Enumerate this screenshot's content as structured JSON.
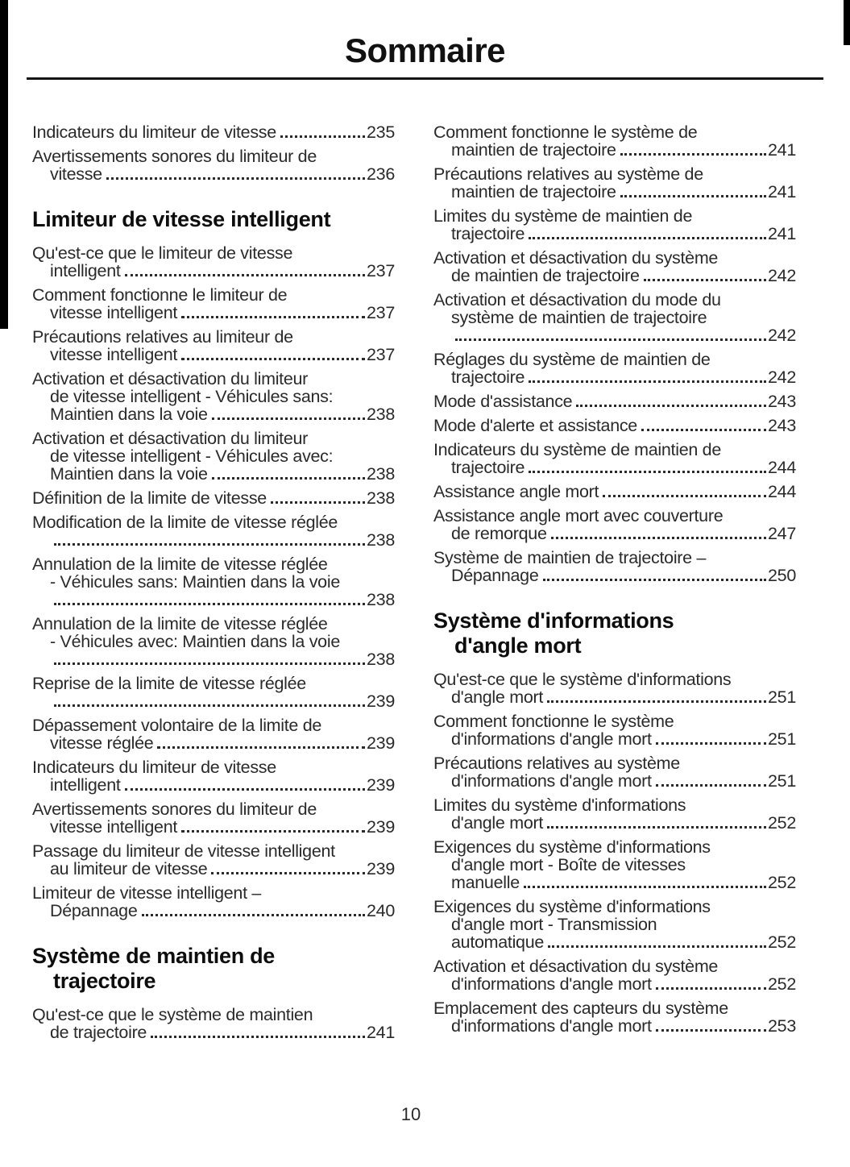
{
  "page": {
    "title": "Sommaire",
    "page_number": "10",
    "text_color": "#2a2a2a",
    "heading_color": "#0d0d0d",
    "edge_artifact_color": "#000000"
  },
  "columns": {
    "left": [
      {
        "type": "entry",
        "lines": [],
        "last": "Indicateurs du limiteur de vitesse",
        "page": "235"
      },
      {
        "type": "entry",
        "lines": [
          "Avertissements sonores du limiteur de"
        ],
        "last": "vitesse",
        "page": "236"
      },
      {
        "type": "heading",
        "lines": [
          "Limiteur de vitesse intelligent"
        ]
      },
      {
        "type": "entry",
        "lines": [
          "Qu'est-ce que le limiteur de vitesse"
        ],
        "last": "intelligent",
        "page": "237"
      },
      {
        "type": "entry",
        "lines": [
          "Comment fonctionne le limiteur de"
        ],
        "last": "vitesse intelligent",
        "page": "237"
      },
      {
        "type": "entry",
        "lines": [
          "Précautions relatives au limiteur de"
        ],
        "last": "vitesse intelligent",
        "page": "237"
      },
      {
        "type": "entry",
        "lines": [
          "Activation et désactivation du limiteur",
          "de vitesse intelligent - Véhicules sans:"
        ],
        "last": "Maintien dans la voie",
        "page": "238"
      },
      {
        "type": "entry",
        "lines": [
          "Activation et désactivation du limiteur",
          "de vitesse intelligent - Véhicules avec:"
        ],
        "last": "Maintien dans la voie",
        "page": "238"
      },
      {
        "type": "entry",
        "lines": [],
        "last": "Définition de la limite de vitesse",
        "page": "238"
      },
      {
        "type": "entry",
        "lines": [
          "Modification de la limite de vitesse réglée"
        ],
        "last": "",
        "page": "238"
      },
      {
        "type": "entry",
        "lines": [
          "Annulation de la limite de vitesse réglée",
          "- Véhicules sans: Maintien dans la voie"
        ],
        "last": "",
        "page": "238"
      },
      {
        "type": "entry",
        "lines": [
          "Annulation de la limite de vitesse réglée",
          "- Véhicules avec: Maintien dans la voie"
        ],
        "last": "",
        "page": "238"
      },
      {
        "type": "entry",
        "lines": [
          "Reprise de la limite de vitesse réglée"
        ],
        "last": "",
        "page": "239"
      },
      {
        "type": "entry",
        "lines": [
          "Dépassement volontaire de la limite de"
        ],
        "last": "vitesse réglée",
        "page": "239"
      },
      {
        "type": "entry",
        "lines": [
          "Indicateurs du limiteur de vitesse"
        ],
        "last": "intelligent",
        "page": "239"
      },
      {
        "type": "entry",
        "lines": [
          "Avertissements sonores du limiteur de"
        ],
        "last": "vitesse intelligent",
        "page": "239"
      },
      {
        "type": "entry",
        "lines": [
          "Passage du limiteur de vitesse intelligent"
        ],
        "last": "au limiteur de vitesse",
        "page": "239"
      },
      {
        "type": "entry",
        "lines": [
          "Limiteur de vitesse intelligent –"
        ],
        "last": "Dépannage",
        "page": "240"
      },
      {
        "type": "heading",
        "lines": [
          "Système de maintien de",
          "trajectoire"
        ]
      },
      {
        "type": "entry",
        "lines": [
          "Qu'est-ce que le système de maintien"
        ],
        "last": "de trajectoire",
        "page": "241"
      }
    ],
    "right": [
      {
        "type": "entry",
        "lines": [
          "Comment fonctionne le système de"
        ],
        "last": "maintien de trajectoire",
        "page": "241"
      },
      {
        "type": "entry",
        "lines": [
          "Précautions relatives au système de"
        ],
        "last": "maintien de trajectoire",
        "page": "241"
      },
      {
        "type": "entry",
        "lines": [
          "Limites du système de maintien de"
        ],
        "last": "trajectoire",
        "page": "241"
      },
      {
        "type": "entry",
        "lines": [
          "Activation et désactivation du système"
        ],
        "last": "de maintien de trajectoire",
        "page": "242"
      },
      {
        "type": "entry",
        "lines": [
          "Activation et désactivation du mode du",
          "système de maintien de trajectoire"
        ],
        "last": "",
        "page": "242"
      },
      {
        "type": "entry",
        "lines": [
          "Réglages du système de maintien de"
        ],
        "last": "trajectoire",
        "page": "242"
      },
      {
        "type": "entry",
        "lines": [],
        "last": "Mode d'assistance",
        "page": "243"
      },
      {
        "type": "entry",
        "lines": [],
        "last": "Mode d'alerte et assistance",
        "page": "243"
      },
      {
        "type": "entry",
        "lines": [
          "Indicateurs du système de maintien de"
        ],
        "last": "trajectoire",
        "page": "244"
      },
      {
        "type": "entry",
        "lines": [],
        "last": "Assistance angle mort",
        "page": "244"
      },
      {
        "type": "entry",
        "lines": [
          "Assistance angle mort avec couverture"
        ],
        "last": "de remorque",
        "page": "247"
      },
      {
        "type": "entry",
        "lines": [
          "Système de maintien de trajectoire –"
        ],
        "last": "Dépannage",
        "page": "250"
      },
      {
        "type": "heading",
        "lines": [
          "Système d'informations",
          "d'angle mort"
        ]
      },
      {
        "type": "entry",
        "lines": [
          "Qu'est-ce que le système d'informations"
        ],
        "last": "d'angle mort",
        "page": "251"
      },
      {
        "type": "entry",
        "lines": [
          "Comment fonctionne le système"
        ],
        "last": "d'informations d'angle mort",
        "page": "251"
      },
      {
        "type": "entry",
        "lines": [
          "Précautions relatives au système"
        ],
        "last": "d'informations d'angle mort",
        "page": "251"
      },
      {
        "type": "entry",
        "lines": [
          "Limites du système d'informations"
        ],
        "last": "d'angle mort",
        "page": "252"
      },
      {
        "type": "entry",
        "lines": [
          "Exigences du système d'informations",
          "d'angle mort - Boîte de vitesses"
        ],
        "last": "manuelle",
        "page": "252"
      },
      {
        "type": "entry",
        "lines": [
          "Exigences du système d'informations",
          "d'angle mort - Transmission"
        ],
        "last": "automatique",
        "page": "252"
      },
      {
        "type": "entry",
        "lines": [
          "Activation et désactivation du système"
        ],
        "last": "d'informations d'angle mort",
        "page": "252"
      },
      {
        "type": "entry",
        "lines": [
          "Emplacement des capteurs du système"
        ],
        "last": "d'informations d'angle mort",
        "page": "253"
      }
    ]
  }
}
